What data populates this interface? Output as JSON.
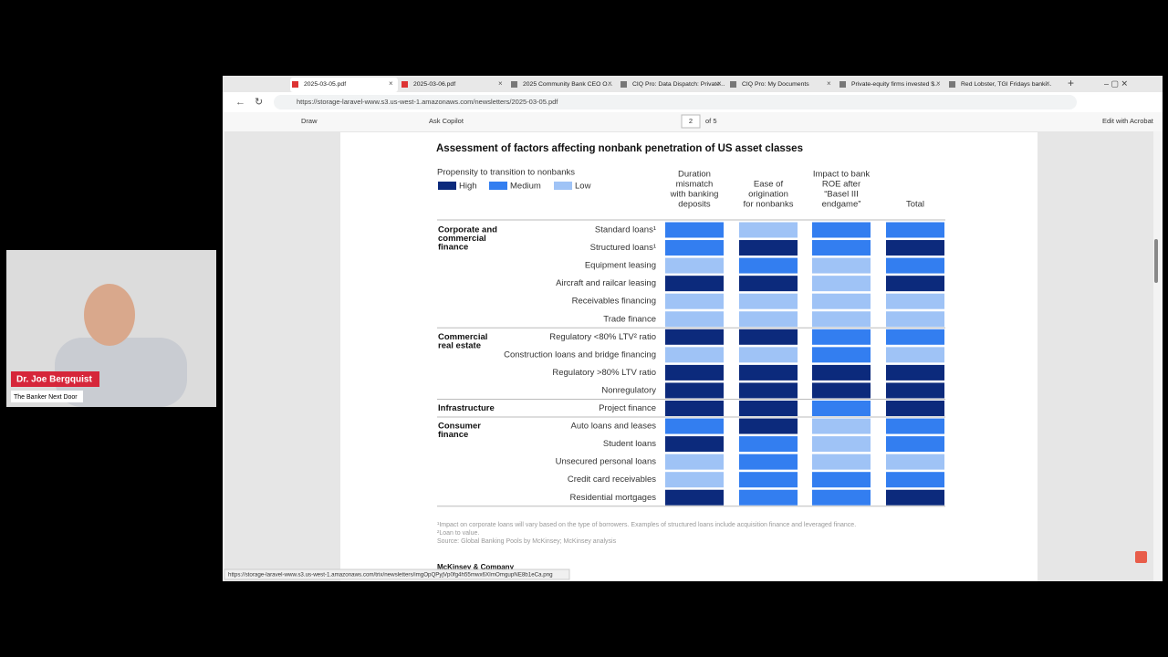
{
  "webcam": {
    "name": "Dr. Joe Bergquist",
    "show": "The Banker Next Door"
  },
  "browser": {
    "tabs": [
      "2025-03-05.pdf",
      "2025-03-06.pdf",
      "2025 Community Bank CEO O...",
      "CIQ Pro: Data Dispatch: Private...",
      "CIQ Pro: My Documents",
      "Private-equity firms invested $...",
      "Red Lobster, TGI Fridays banki..."
    ],
    "url": "https://storage-laravel-www.s3.us-west-1.amazonaws.com/newsletters/2025-03-05.pdf",
    "toolbar": {
      "draw": "Draw",
      "copilot": "Ask Copilot",
      "page": "2",
      "pages": "of 5",
      "acrobat": "Edit with Acrobat"
    },
    "status_url": "https://storage-laravel-www.s3.us-west-1.amazonaws.com/trix/newsletters/imgOpQPyjVp0fg4h55mwx6XImOmgupNE8b1eCa.png"
  },
  "chart": {
    "title": "Assessment of factors affecting nonbank penetration of US asset classes",
    "legend_title": "Propensity to transition to nonbanks",
    "legend": [
      {
        "name": "High",
        "color": "#0c2a7c"
      },
      {
        "name": "Medium",
        "color": "#337ef0"
      },
      {
        "name": "Low",
        "color": "#9fc3f6"
      }
    ],
    "columns": [
      [
        "Duration",
        "mismatch",
        "with banking",
        "deposits"
      ],
      [
        "Ease of",
        "origination",
        "for nonbanks"
      ],
      [
        "Impact to bank",
        "ROE after",
        "“Basel III",
        "endgame”"
      ],
      [
        "Total"
      ]
    ],
    "groups": [
      {
        "label": [
          "Corporate and",
          "commercial",
          "finance"
        ],
        "rows": [
          {
            "label": "Standard loans¹",
            "cells": [
              "Medium",
              "Low",
              "Medium",
              "Medium"
            ]
          },
          {
            "label": "Structured loans¹",
            "cells": [
              "Medium",
              "High",
              "Medium",
              "High"
            ]
          },
          {
            "label": "Equipment leasing",
            "cells": [
              "Low",
              "Medium",
              "Low",
              "Medium"
            ]
          },
          {
            "label": "Aircraft and railcar leasing",
            "cells": [
              "High",
              "High",
              "Low",
              "High"
            ]
          },
          {
            "label": "Receivables financing",
            "cells": [
              "Low",
              "Low",
              "Low",
              "Low"
            ]
          },
          {
            "label": "Trade finance",
            "cells": [
              "Low",
              "Low",
              "Low",
              "Low"
            ]
          }
        ]
      },
      {
        "label": [
          "Commercial",
          "real estate"
        ],
        "rows": [
          {
            "label": "Regulatory <80% LTV² ratio",
            "cells": [
              "High",
              "High",
              "Medium",
              "Medium"
            ]
          },
          {
            "label": "Construction loans and bridge financing",
            "cells": [
              "Low",
              "Low",
              "Medium",
              "Low"
            ]
          },
          {
            "label": "Regulatory >80% LTV ratio",
            "cells": [
              "High",
              "High",
              "High",
              "High"
            ]
          },
          {
            "label": "Nonregulatory",
            "cells": [
              "High",
              "High",
              "High",
              "High"
            ]
          }
        ]
      },
      {
        "label": [
          "Infrastructure"
        ],
        "rows": [
          {
            "label": "Project finance",
            "cells": [
              "High",
              "High",
              "Medium",
              "High"
            ]
          }
        ]
      },
      {
        "label": [
          "Consumer",
          "finance"
        ],
        "rows": [
          {
            "label": "Auto loans and leases",
            "cells": [
              "Medium",
              "High",
              "Low",
              "Medium"
            ]
          },
          {
            "label": "Student loans",
            "cells": [
              "High",
              "Medium",
              "Low",
              "Medium"
            ]
          },
          {
            "label": "Unsecured personal loans",
            "cells": [
              "Low",
              "Medium",
              "Low",
              "Low"
            ]
          },
          {
            "label": "Credit card receivables",
            "cells": [
              "Low",
              "Medium",
              "Medium",
              "Medium"
            ]
          },
          {
            "label": "Residential mortgages",
            "cells": [
              "High",
              "Medium",
              "Medium",
              "High"
            ]
          }
        ]
      }
    ],
    "footnotes": [
      "¹Impact on corporate loans will vary based on the type of borrowers. Examples of structured loans include acquisition finance and leveraged finance.",
      "²Loan to value.",
      "Source: Global Banking Pools by McKinsey; McKinsey analysis"
    ],
    "brand": "McKinsey & Company"
  }
}
